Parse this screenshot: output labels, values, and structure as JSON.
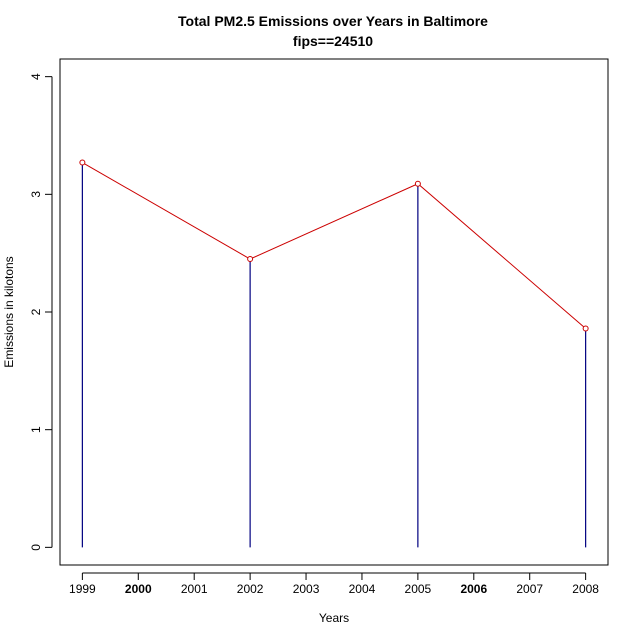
{
  "chart_data": {
    "type": "line",
    "title": "Total PM2.5 Emissions over Years in Baltimore",
    "subtitle": "fips==24510",
    "xlabel": "Years",
    "ylabel": "Emissions in kilotons",
    "x": [
      1999,
      2002,
      2005,
      2008
    ],
    "values": [
      3.27,
      2.45,
      3.09,
      1.86
    ],
    "xlim": [
      1998.6,
      2008.4
    ],
    "ylim": [
      -0.15,
      4.15
    ],
    "x_ticks": [
      {
        "value": 1999,
        "label": "1999",
        "bold": false
      },
      {
        "value": 2000,
        "label": "2000",
        "bold": true
      },
      {
        "value": 2001,
        "label": "2001",
        "bold": false
      },
      {
        "value": 2002,
        "label": "2002",
        "bold": false
      },
      {
        "value": 2003,
        "label": "2003",
        "bold": false
      },
      {
        "value": 2004,
        "label": "2004",
        "bold": false
      },
      {
        "value": 2005,
        "label": "2005",
        "bold": false
      },
      {
        "value": 2006,
        "label": "2006",
        "bold": true
      },
      {
        "value": 2007,
        "label": "2007",
        "bold": false
      },
      {
        "value": 2008,
        "label": "2008",
        "bold": false
      }
    ],
    "y_ticks": [
      {
        "value": 0,
        "label": "0"
      },
      {
        "value": 1,
        "label": "1"
      },
      {
        "value": 2,
        "label": "2"
      },
      {
        "value": 3,
        "label": "3"
      },
      {
        "value": 4,
        "label": "4"
      }
    ],
    "grid": false,
    "line_color": "#cc0000",
    "drop_line_color": "#000080",
    "marker_color": "#cc0000"
  }
}
